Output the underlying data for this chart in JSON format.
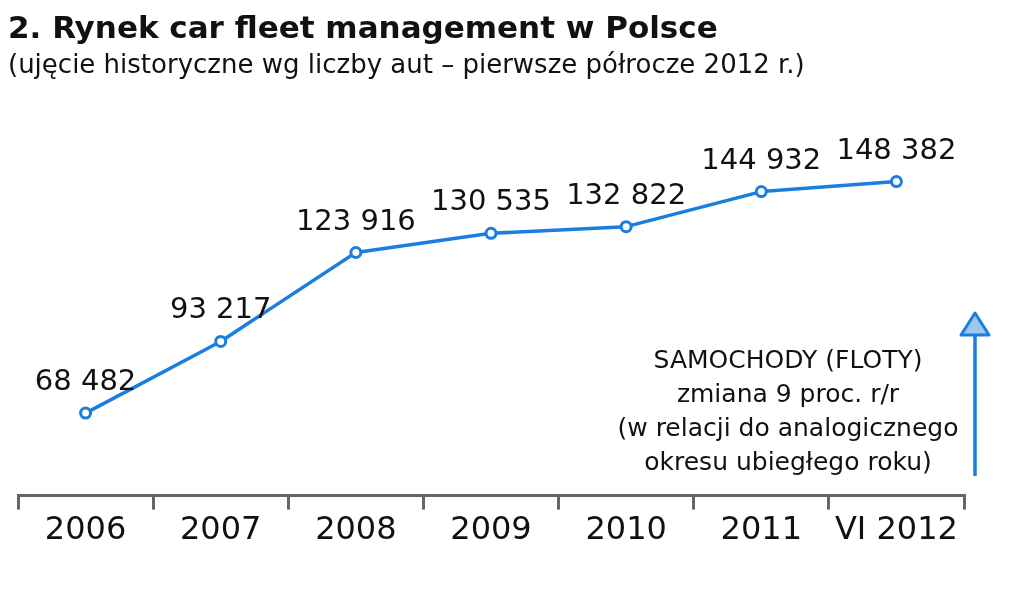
{
  "chart_data": {
    "type": "line",
    "title": "2. Rynek car fleet management w Polsce",
    "subtitle": "(ujęcie historyczne wg liczby aut – pierwsze półrocze 2012 r.)",
    "categories": [
      "2006",
      "2007",
      "2008",
      "2009",
      "2010",
      "2011",
      "VI 2012"
    ],
    "series": [
      {
        "color": "#1a7ee0",
        "values": [
          68482,
          93217,
          123916,
          130535,
          132822,
          144932,
          148382
        ]
      }
    ],
    "data_labels": true,
    "marker": "circle",
    "annotations": [
      "SAMOCHODY  (FLOTY)",
      "zmiana 9 proc. r/r",
      "(w relacji do analogicznego",
      "okresu ubiegłego roku)"
    ]
  }
}
